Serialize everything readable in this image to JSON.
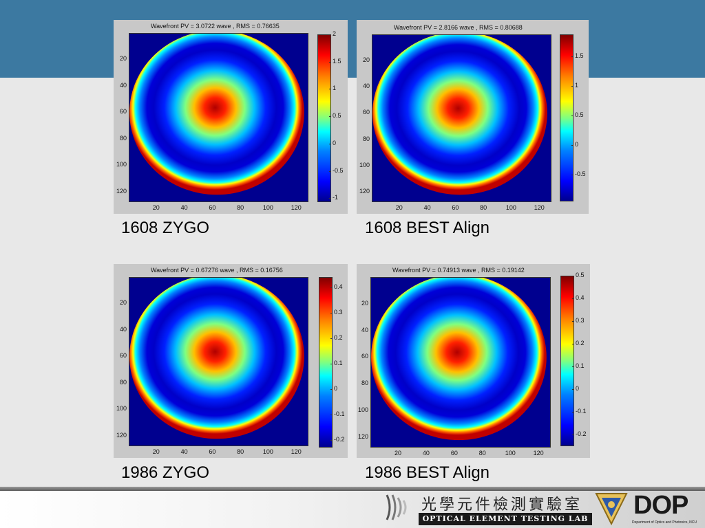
{
  "slide": {
    "colors": {
      "top_band": "#3c79a1",
      "body": "#e8e8e8",
      "panel_bg": "#c8c8c8"
    },
    "footer": {
      "lab_name_zh": "光學元件檢測實驗室",
      "lab_name_en": "OPTICAL ELEMENT TESTING LAB",
      "dop_logo": "DOP",
      "dop_subtitle": "Department of Optics and Photonics, NCU"
    }
  },
  "chart_data": [
    {
      "type": "heatmap",
      "caption": "1608 ZYGO",
      "title": "Wavefront PV = 3.0722 wave , RMS = 0.76635",
      "pv": 3.0722,
      "rms": 0.76635,
      "x_ticks": [
        "20",
        "40",
        "60",
        "80",
        "100",
        "120"
      ],
      "y_ticks": [
        "20",
        "40",
        "60",
        "80",
        "100",
        "120"
      ],
      "colorbar_ticks": [
        "2",
        "1.5",
        "1",
        "0.5",
        "0",
        "-0.5",
        "-1"
      ],
      "clim": [
        -1.07,
        2.0
      ],
      "colormap": "jet"
    },
    {
      "type": "heatmap",
      "caption": "1608 BEST Align",
      "title": "Wavefront PV = 2.8166 wave , RMS = 0.80688",
      "pv": 2.8166,
      "rms": 0.80688,
      "x_ticks": [
        "20",
        "40",
        "60",
        "80",
        "100",
        "120"
      ],
      "y_ticks": [
        "20",
        "40",
        "60",
        "80",
        "100",
        "120"
      ],
      "colorbar_ticks": [
        "1.5",
        "1",
        "0.5",
        "0",
        "-0.5"
      ],
      "clim": [
        -0.95,
        1.87
      ],
      "colormap": "jet"
    },
    {
      "type": "heatmap",
      "caption": "1986 ZYGO",
      "title": "Wavefront PV = 0.67276 wave , RMS = 0.16756",
      "pv": 0.67276,
      "rms": 0.16756,
      "x_ticks": [
        "20",
        "40",
        "60",
        "80",
        "100",
        "120"
      ],
      "y_ticks": [
        "20",
        "40",
        "60",
        "80",
        "100",
        "120"
      ],
      "colorbar_ticks": [
        "0.4",
        "0.3",
        "0.2",
        "0.1",
        "0",
        "-0.1",
        "-0.2"
      ],
      "clim": [
        -0.23,
        0.44
      ],
      "colormap": "jet"
    },
    {
      "type": "heatmap",
      "caption": "1986 BEST Align",
      "title": "Wavefront PV = 0.74913 wave , RMS = 0.19142",
      "pv": 0.74913,
      "rms": 0.19142,
      "x_ticks": [
        "20",
        "40",
        "60",
        "80",
        "100",
        "120"
      ],
      "y_ticks": [
        "20",
        "40",
        "60",
        "80",
        "100",
        "120"
      ],
      "colorbar_ticks": [
        "0.5",
        "0.4",
        "0.3",
        "0.2",
        "0.1",
        "0",
        "-0.1",
        "-0.2"
      ],
      "clim": [
        -0.25,
        0.5
      ],
      "colormap": "jet"
    }
  ]
}
